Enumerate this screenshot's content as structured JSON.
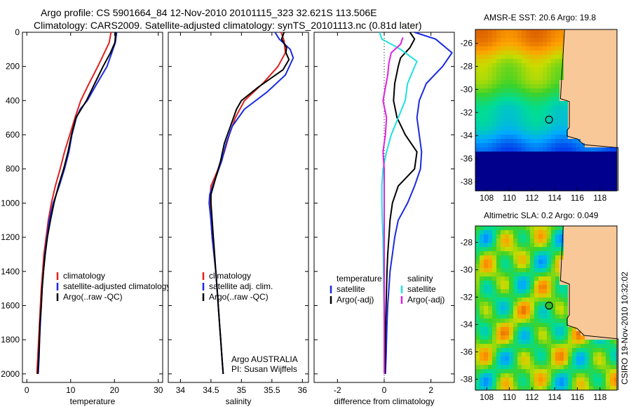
{
  "header": {
    "line1": "Argo profile: CS 5901664_84 12-Nov-2010 20101115_323 32.621S 113.506E",
    "line2": "Climatology: CARS2009. Satellite-adjusted climatology: synTS_20101113.nc (0.81d later)"
  },
  "footer": {
    "credit": "CSIRO 19-Nov-2010 10:32:02"
  },
  "colors": {
    "climatology": "#e0201e",
    "satellite": "#1a2ae0",
    "argo": "#000000",
    "satellite_diff": "#20e0e0",
    "argo_adj_diff": "#e020e0"
  },
  "chart_data": [
    {
      "type": "line",
      "xlabel": "temperature",
      "ylabel": "",
      "xlim": [
        -1,
        31
      ],
      "ylim": [
        2050,
        0
      ],
      "xticks": [
        "0",
        "10",
        "20",
        "30"
      ],
      "yticks": [
        "0",
        "200",
        "400",
        "600",
        "800",
        "1000",
        "1200",
        "1400",
        "1600",
        "1800",
        "2000"
      ],
      "legend": [
        "climatology",
        "satellite-adjusted climatology",
        "Argo(..raw -QC)"
      ],
      "legend_position": "lower-right",
      "series": [
        {
          "name": "climatology",
          "color_key": "climatology",
          "points": [
            [
              19.2,
              0
            ],
            [
              18.8,
              60
            ],
            [
              17.7,
              120
            ],
            [
              16.2,
              200
            ],
            [
              14.2,
              300
            ],
            [
              12.3,
              400
            ],
            [
              11,
              500
            ],
            [
              9.8,
              600
            ],
            [
              8.6,
              700
            ],
            [
              7.6,
              800
            ],
            [
              6.5,
              900
            ],
            [
              5.6,
              1000
            ],
            [
              4.9,
              1100
            ],
            [
              4.4,
              1200
            ],
            [
              3.9,
              1300
            ],
            [
              3.6,
              1400
            ],
            [
              3.3,
              1500
            ],
            [
              3.1,
              1600
            ],
            [
              2.9,
              1700
            ],
            [
              2.7,
              1800
            ],
            [
              2.5,
              1900
            ],
            [
              2.3,
              2000
            ]
          ]
        },
        {
          "name": "satellite-adjusted climatology",
          "color_key": "satellite",
          "points": [
            [
              20.5,
              0
            ],
            [
              20.2,
              60
            ],
            [
              19.4,
              120
            ],
            [
              18.3,
              200
            ],
            [
              16,
              300
            ],
            [
              13.8,
              400
            ],
            [
              12.2,
              450
            ],
            [
              11.3,
              500
            ],
            [
              10.3,
              600
            ],
            [
              9.6,
              700
            ],
            [
              8.6,
              800
            ],
            [
              7.4,
              900
            ],
            [
              6,
              1000
            ],
            [
              5.1,
              1100
            ],
            [
              4.6,
              1200
            ],
            [
              4.1,
              1300
            ],
            [
              3.8,
              1400
            ],
            [
              3.5,
              1500
            ],
            [
              3.3,
              1600
            ],
            [
              3.1,
              1700
            ],
            [
              2.9,
              1800
            ],
            [
              2.8,
              1900
            ],
            [
              2.6,
              2000
            ]
          ]
        },
        {
          "name": "Argo(..raw -QC)",
          "color_key": "argo",
          "points": [
            [
              20.3,
              0
            ],
            [
              20.1,
              60
            ],
            [
              19.1,
              120
            ],
            [
              17.4,
              200
            ],
            [
              15.5,
              300
            ],
            [
              13.6,
              400
            ],
            [
              12.4,
              450
            ],
            [
              11.2,
              500
            ],
            [
              10.2,
              600
            ],
            [
              9.4,
              700
            ],
            [
              8.4,
              800
            ],
            [
              7.2,
              900
            ],
            [
              6.2,
              1000
            ],
            [
              5.4,
              1100
            ],
            [
              4.7,
              1200
            ],
            [
              4.2,
              1300
            ],
            [
              3.8,
              1400
            ],
            [
              3.5,
              1500
            ],
            [
              3.3,
              1600
            ],
            [
              3,
              1700
            ],
            [
              2.9,
              1800
            ],
            [
              2.7,
              1900
            ],
            [
              2.5,
              2000
            ]
          ]
        }
      ]
    },
    {
      "type": "line",
      "xlabel": "salinity",
      "ylabel": "",
      "xlim": [
        33.8,
        36.1
      ],
      "ylim": [
        2050,
        0
      ],
      "xticks": [
        "34",
        "34.5",
        "35",
        "35.5",
        "36"
      ],
      "yticks": [],
      "legend": [
        "climatology",
        "satellite adj. clim.",
        "Argo(..raw -QC)"
      ],
      "legend_position": "lower-right",
      "annotations": [
        "Argo AUSTRALIA",
        "PI: Susan Wijffels"
      ],
      "series": [
        {
          "name": "climatology",
          "color_key": "climatology",
          "points": [
            [
              35.65,
              0
            ],
            [
              35.7,
              50
            ],
            [
              35.72,
              120
            ],
            [
              35.6,
              200
            ],
            [
              35.35,
              300
            ],
            [
              35.05,
              400
            ],
            [
              34.9,
              500
            ],
            [
              34.8,
              600
            ],
            [
              34.72,
              700
            ],
            [
              34.62,
              800
            ],
            [
              34.5,
              900
            ],
            [
              34.48,
              1000
            ],
            [
              34.5,
              1100
            ],
            [
              34.52,
              1200
            ],
            [
              34.55,
              1300
            ],
            [
              34.58,
              1400
            ],
            [
              34.6,
              1500
            ],
            [
              34.62,
              1600
            ],
            [
              34.64,
              1700
            ],
            [
              34.66,
              1800
            ],
            [
              34.68,
              1900
            ],
            [
              34.7,
              2000
            ]
          ]
        },
        {
          "name": "satellite adj. clim.",
          "color_key": "satellite",
          "points": [
            [
              35.55,
              0
            ],
            [
              35.62,
              40
            ],
            [
              35.8,
              100
            ],
            [
              35.85,
              150
            ],
            [
              35.72,
              250
            ],
            [
              35.42,
              350
            ],
            [
              35.05,
              450
            ],
            [
              34.85,
              550
            ],
            [
              34.75,
              650
            ],
            [
              34.68,
              750
            ],
            [
              34.58,
              850
            ],
            [
              34.48,
              950
            ],
            [
              34.47,
              1000
            ],
            [
              34.5,
              1100
            ],
            [
              34.52,
              1200
            ],
            [
              34.55,
              1300
            ],
            [
              34.58,
              1400
            ],
            [
              34.6,
              1500
            ],
            [
              34.62,
              1600
            ],
            [
              34.64,
              1700
            ],
            [
              34.66,
              1800
            ],
            [
              34.68,
              1900
            ],
            [
              34.7,
              2000
            ]
          ]
        },
        {
          "name": "Argo(..raw -QC)",
          "color_key": "argo",
          "points": [
            [
              35.7,
              0
            ],
            [
              35.66,
              40
            ],
            [
              35.74,
              90
            ],
            [
              35.73,
              120
            ],
            [
              35.78,
              160
            ],
            [
              35.68,
              220
            ],
            [
              35.28,
              320
            ],
            [
              35,
              400
            ],
            [
              34.92,
              450
            ],
            [
              34.82,
              550
            ],
            [
              34.72,
              650
            ],
            [
              34.66,
              750
            ],
            [
              34.58,
              850
            ],
            [
              34.5,
              950
            ],
            [
              34.5,
              1000
            ],
            [
              34.52,
              1100
            ],
            [
              34.54,
              1200
            ],
            [
              34.56,
              1300
            ],
            [
              34.58,
              1400
            ],
            [
              34.6,
              1500
            ],
            [
              34.62,
              1600
            ],
            [
              34.64,
              1700
            ],
            [
              34.66,
              1800
            ],
            [
              34.68,
              1900
            ],
            [
              34.7,
              2000
            ]
          ]
        }
      ]
    },
    {
      "type": "line",
      "xlabel": "difference from climatology",
      "ylabel": "",
      "xlim": [
        -3,
        3
      ],
      "ylim": [
        2050,
        0
      ],
      "xticks": [
        "-2",
        "0",
        "2"
      ],
      "yticks": [],
      "zero_line": true,
      "legend_groups": [
        {
          "heading": "temperature",
          "items": [
            "satellite",
            "Argo(-adj)"
          ]
        },
        {
          "heading": "salinity",
          "items": [
            "satellite",
            "Argo(-adj)"
          ]
        }
      ],
      "legend_position": "lower-right",
      "series": [
        {
          "name": "temperature satellite",
          "color_key": "satellite",
          "points": [
            [
              1.3,
              0
            ],
            [
              2.2,
              40
            ],
            [
              2.9,
              120
            ],
            [
              2.5,
              200
            ],
            [
              1.8,
              300
            ],
            [
              1.5,
              400
            ],
            [
              1.4,
              500
            ],
            [
              1.5,
              600
            ],
            [
              1.6,
              700
            ],
            [
              1.55,
              800
            ],
            [
              1.3,
              900
            ],
            [
              1,
              1000
            ],
            [
              0.6,
              1100
            ],
            [
              0.45,
              1200
            ],
            [
              0.35,
              1300
            ],
            [
              0.25,
              1400
            ],
            [
              0.2,
              1500
            ],
            [
              0.15,
              1600
            ],
            [
              0.12,
              1700
            ],
            [
              0.1,
              1800
            ],
            [
              0.08,
              1900
            ],
            [
              0.05,
              2000
            ]
          ]
        },
        {
          "name": "temperature Argo(-adj)",
          "color_key": "argo",
          "points": [
            [
              1.1,
              0
            ],
            [
              1.3,
              40
            ],
            [
              1.1,
              90
            ],
            [
              0.7,
              150
            ],
            [
              0.6,
              200
            ],
            [
              0.45,
              300
            ],
            [
              0.4,
              400
            ],
            [
              0.55,
              500
            ],
            [
              0.9,
              600
            ],
            [
              1.4,
              700
            ],
            [
              1.3,
              800
            ],
            [
              0.6,
              900
            ],
            [
              0.35,
              1000
            ],
            [
              0.25,
              1100
            ],
            [
              0.2,
              1200
            ],
            [
              0.15,
              1300
            ],
            [
              0.12,
              1400
            ],
            [
              0.1,
              1500
            ],
            [
              0.08,
              1600
            ],
            [
              0.06,
              1700
            ],
            [
              0.05,
              1800
            ],
            [
              0.04,
              1900
            ],
            [
              0.03,
              2000
            ]
          ]
        },
        {
          "name": "salinity satellite",
          "color_key": "satellite_diff",
          "points": [
            [
              -0.2,
              0
            ],
            [
              -0.1,
              40
            ],
            [
              0.7,
              100
            ],
            [
              1.4,
              170
            ],
            [
              1,
              300
            ],
            [
              0.9,
              400
            ],
            [
              0.6,
              500
            ],
            [
              0.3,
              600
            ],
            [
              0.1,
              700
            ],
            [
              -0.05,
              800
            ],
            [
              -0.1,
              900
            ],
            [
              -0.1,
              1000
            ],
            [
              -0.08,
              1100
            ],
            [
              -0.05,
              1200
            ],
            [
              -0.04,
              1300
            ],
            [
              -0.03,
              1400
            ],
            [
              -0.02,
              1500
            ],
            [
              -0.01,
              1600
            ],
            [
              0,
              1700
            ],
            [
              0,
              1800
            ],
            [
              0,
              1900
            ],
            [
              0,
              2000
            ]
          ]
        },
        {
          "name": "salinity Argo(-adj)",
          "color_key": "argo_adj_diff",
          "points": [
            [
              0.8,
              30
            ],
            [
              0.7,
              70
            ],
            [
              0.3,
              120
            ],
            [
              0.2,
              180
            ],
            [
              0.15,
              250
            ],
            [
              -0.05,
              400
            ],
            [
              0.1,
              500
            ],
            [
              0.05,
              600
            ],
            [
              -0.05,
              700
            ],
            [
              0,
              800
            ],
            [
              0,
              900
            ],
            [
              0,
              1000
            ],
            [
              0,
              1100
            ],
            [
              0,
              1200
            ],
            [
              0,
              1300
            ],
            [
              0,
              1400
            ],
            [
              0,
              1500
            ],
            [
              0,
              1600
            ],
            [
              0,
              1700
            ],
            [
              0,
              1800
            ],
            [
              0,
              1900
            ],
            [
              0,
              2000
            ]
          ]
        }
      ]
    },
    {
      "type": "heatmap",
      "title": "AMSR-E SST: 20.6 Argo: 19.8",
      "xlim": [
        107,
        119.5
      ],
      "ylim": [
        -38.8,
        -24.8
      ],
      "xticks": [
        "108",
        "110",
        "112",
        "114",
        "116",
        "118"
      ],
      "yticks": [
        "-26",
        "-28",
        "-30",
        "-32",
        "-34",
        "-36",
        "-38"
      ],
      "marker": {
        "lon": 113.506,
        "lat": -32.621
      }
    },
    {
      "type": "heatmap",
      "title": "Altimetric SLA: 0.2 Argo: 0.049",
      "xlim": [
        107,
        119.5
      ],
      "ylim": [
        -38.8,
        -26.8
      ],
      "xticks": [
        "108",
        "110",
        "112",
        "114",
        "116",
        "118"
      ],
      "yticks": [
        "-28",
        "-30",
        "-32",
        "-34",
        "-36",
        "-38"
      ],
      "marker": {
        "lon": 113.506,
        "lat": -32.621
      }
    }
  ]
}
